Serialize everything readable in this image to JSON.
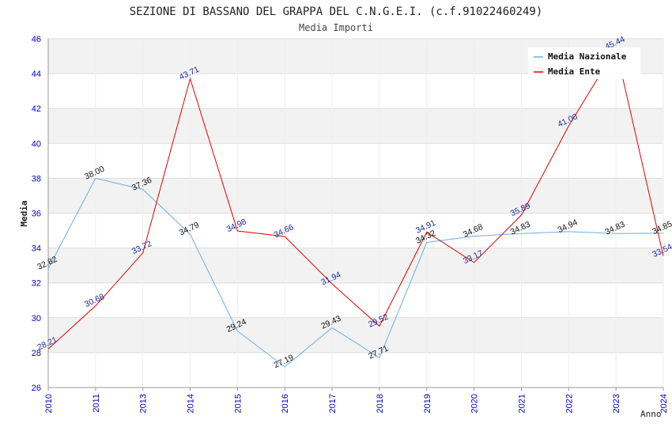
{
  "chart_data": {
    "type": "line",
    "title": "SEZIONE DI BASSANO DEL GRAPPA DEL C.N.G.E.I. (c.f.91022460249)",
    "subtitle": "Media Importi",
    "xlabel": "Anno",
    "ylabel": "Media",
    "ylim": [
      26,
      46
    ],
    "yticks": [
      26,
      28,
      30,
      32,
      34,
      36,
      38,
      40,
      42,
      44,
      46
    ],
    "categories": [
      "2010",
      "2011",
      "2013",
      "2014",
      "2015",
      "2016",
      "2017",
      "2018",
      "2019",
      "2020",
      "2021",
      "2022",
      "2023",
      "2024"
    ],
    "grid": true,
    "legend_position": "top-right",
    "series": [
      {
        "name": "Media Nazionale",
        "color": "#6aaee6",
        "values": [
          32.82,
          38.0,
          37.36,
          34.79,
          29.24,
          27.19,
          29.43,
          27.71,
          34.32,
          34.68,
          34.83,
          34.94,
          34.83,
          34.85
        ]
      },
      {
        "name": "Media Ente",
        "color": "#e00000",
        "values": [
          28.21,
          30.68,
          33.72,
          43.71,
          34.98,
          34.66,
          31.94,
          29.52,
          34.91,
          33.17,
          35.89,
          41.0,
          45.44,
          33.54
        ]
      }
    ]
  }
}
